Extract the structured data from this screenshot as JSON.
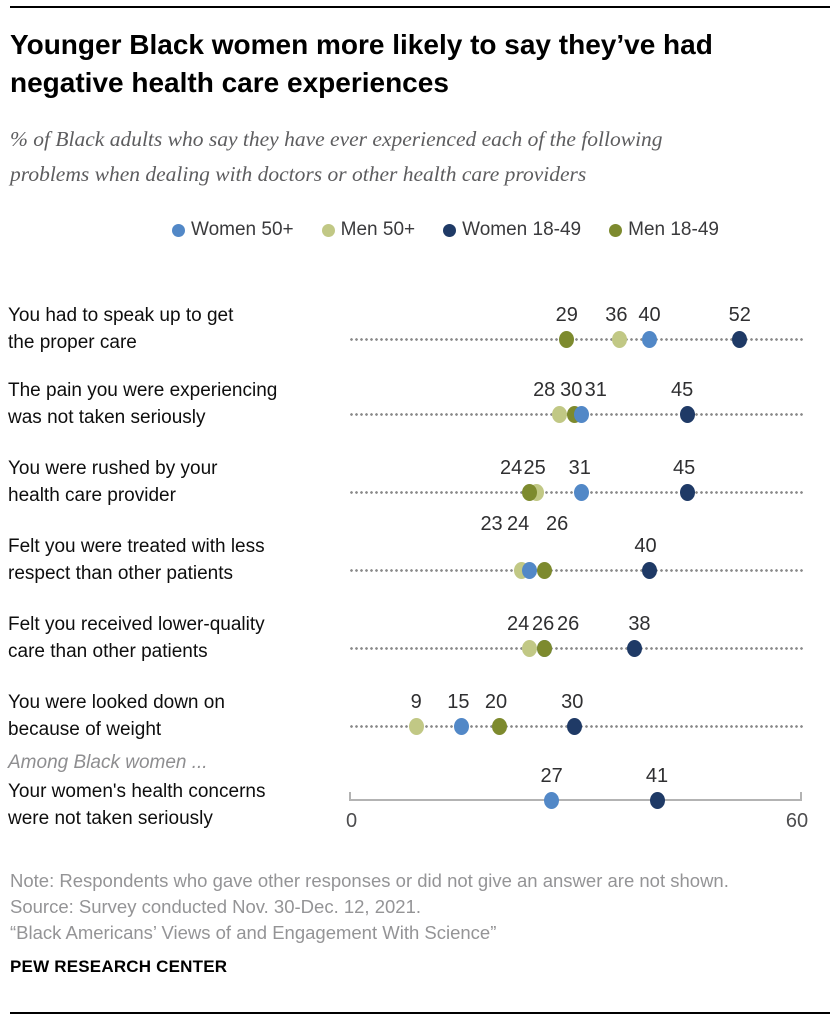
{
  "header": {
    "title_lines": [
      "Younger Black women more likely to say they’ve had",
      "negative health care experiences"
    ],
    "subtitle_lines": [
      "% of Black adults who say they have ever experienced each of the following",
      "problems when dealing with doctors or other health care providers"
    ]
  },
  "legend": {
    "items": [
      {
        "label": "Women 50+",
        "color": "#5288c7"
      },
      {
        "label": "Men 50+",
        "color": "#c1c885"
      },
      {
        "label": "Women 18-49",
        "color": "#1f3a66"
      },
      {
        "label": "Men 18-49",
        "color": "#7d8a2e"
      }
    ]
  },
  "chart_data": {
    "type": "scatter",
    "variant": "dot-plot",
    "title": "Younger Black women more likely to say they’ve had negative health care experiences",
    "xlabel": "% of Black adults",
    "axis": {
      "min": 0,
      "max": 60,
      "tick_labels": [
        "0",
        "60"
      ],
      "grid": false
    },
    "series_names": [
      "Women 50+",
      "Men 50+",
      "Women 18-49",
      "Men 18-49"
    ],
    "rows": [
      {
        "label_lines": [
          "You had to speak up to get",
          "the proper care"
        ],
        "points": [
          {
            "series": "Men 18-49",
            "value": 29,
            "dx": 0
          },
          {
            "series": "Men 50+",
            "value": 36,
            "dx": -3
          },
          {
            "series": "Women 50+",
            "value": 40,
            "dx": 0
          },
          {
            "series": "Women 18-49",
            "value": 52,
            "dx": 0
          }
        ]
      },
      {
        "label_lines": [
          "The pain you were experiencing",
          "was not taken seriously"
        ],
        "points": [
          {
            "series": "Men 50+",
            "value": 28,
            "dx": -15
          },
          {
            "series": "Men 18-49",
            "value": 30,
            "dx": -3
          },
          {
            "series": "Women 50+",
            "value": 31,
            "dx": 14
          },
          {
            "series": "Women 18-49",
            "value": 45,
            "dx": -5
          }
        ]
      },
      {
        "label_lines": [
          "You were rushed by your",
          "health care provider"
        ],
        "points": [
          {
            "series": "Men 50+",
            "value": 25,
            "dx": -2
          },
          {
            "series": "Men 18-49",
            "value": 24,
            "dx": -18
          },
          {
            "series": "Women 50+",
            "value": 31,
            "dx": -2
          },
          {
            "series": "Women 18-49",
            "value": 45,
            "dx": -3
          }
        ]
      },
      {
        "label_lines": [
          "Felt you were treated with less",
          "respect than other patients"
        ],
        "points": [
          {
            "series": "Men 50+",
            "value": 23,
            "dx": -30,
            "raised": true
          },
          {
            "series": "Women 50+",
            "value": 24,
            "dx": -11,
            "raised": true
          },
          {
            "series": "Men 18-49",
            "value": 26,
            "dx": 13,
            "raised": true
          },
          {
            "series": "Women 18-49",
            "value": 40,
            "dx": -4
          }
        ]
      },
      {
        "label_lines": [
          "Felt you received lower-quality",
          "care than other patients"
        ],
        "points": [
          {
            "series": "Men 50+",
            "value": 24,
            "dx": -11
          },
          {
            "series": "Women 50+",
            "value": 26,
            "dx": 24
          },
          {
            "series": "Men 18-49",
            "value": 26,
            "dx": -1
          },
          {
            "series": "Women 18-49",
            "value": 38,
            "dx": 5
          }
        ]
      },
      {
        "label_lines": [
          "You were looked down on",
          "because of weight"
        ],
        "points": [
          {
            "series": "Men 50+",
            "value": 9,
            "dx": 0
          },
          {
            "series": "Women 50+",
            "value": 15,
            "dx": -3
          },
          {
            "series": "Men 18-49",
            "value": 20,
            "dx": -3
          },
          {
            "series": "Women 18-49",
            "value": 30,
            "dx": -2
          }
        ]
      },
      {
        "kicker": "Among Black women ...",
        "label_lines": [
          "Your women's health concerns",
          "were not taken seriously"
        ],
        "axis_row": true,
        "points": [
          {
            "series": "Women 50+",
            "value": 27,
            "dx": 0
          },
          {
            "series": "Women 18-49",
            "value": 41,
            "dx": 0
          }
        ]
      }
    ]
  },
  "footer": {
    "note": "Note: Respondents who gave other responses or did not give an answer are not shown.",
    "source": "Source: Survey conducted Nov. 30-Dec. 12, 2021.",
    "citation": "“Black Americans’ Views of and Engagement With Science”",
    "brand": "PEW RESEARCH CENTER"
  }
}
